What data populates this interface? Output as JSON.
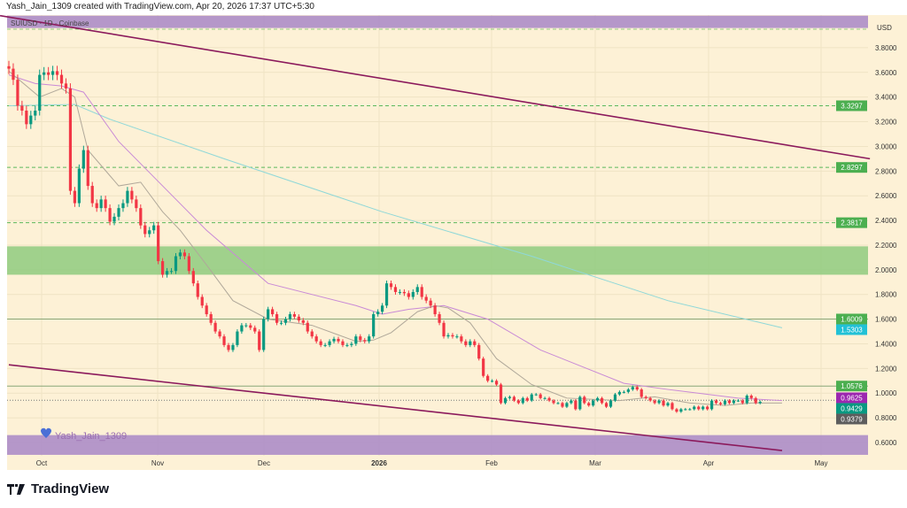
{
  "header": {
    "text": "Yash_Jain_1309 created with TradingView.com, Apr 20, 2026 17:37 UTC+5:30"
  },
  "chart": {
    "symbol_label": "SUIUSD · 1D · Coinbase",
    "currency": "USD",
    "watermark": "Yash_Jain_1309",
    "background": "#fdf1d6",
    "colors": {
      "up": "#089981",
      "down": "#f23645",
      "ma_gray": "#b0a89a",
      "ma_purple": "#c98ad6",
      "ma_cyan": "#8fd8d8",
      "trendline": "#8b1a5c",
      "zone_green": "#8fcb7f",
      "zone_purple": "#a887c7"
    }
  },
  "chart_data": {
    "type": "candlestick",
    "ylim": [
      0.5,
      4.0
    ],
    "y_ticks": [
      "3.8000",
      "3.6000",
      "3.4000",
      "3.2000",
      "3.0000",
      "2.8000",
      "2.6000",
      "2.4000",
      "2.2000",
      "2.0000",
      "1.8000",
      "1.6000",
      "1.4000",
      "1.2000",
      "1.0000",
      "0.8000",
      "0.6000"
    ],
    "x_ticks": [
      "Oct",
      "Nov",
      "Dec",
      "2026",
      "Feb",
      "Mar",
      "Apr",
      "May"
    ],
    "closes": [
      3.63,
      3.54,
      3.33,
      3.29,
      3.18,
      3.25,
      3.29,
      3.58,
      3.6,
      3.58,
      3.61,
      3.58,
      3.51,
      3.47,
      2.64,
      2.54,
      2.82,
      2.97,
      2.68,
      2.54,
      2.5,
      2.57,
      2.5,
      2.39,
      2.43,
      2.5,
      2.54,
      2.64,
      2.57,
      2.5,
      2.36,
      2.29,
      2.32,
      2.36,
      2.07,
      1.96,
      1.99,
      1.99,
      2.11,
      2.14,
      2.11,
      1.99,
      1.89,
      1.78,
      1.71,
      1.64,
      1.57,
      1.5,
      1.46,
      1.39,
      1.35,
      1.39,
      1.5,
      1.55,
      1.55,
      1.53,
      1.5,
      1.35,
      1.6,
      1.68,
      1.64,
      1.57,
      1.57,
      1.6,
      1.64,
      1.62,
      1.59,
      1.57,
      1.5,
      1.46,
      1.42,
      1.39,
      1.39,
      1.42,
      1.44,
      1.42,
      1.39,
      1.39,
      1.4,
      1.46,
      1.43,
      1.42,
      1.46,
      1.64,
      1.66,
      1.71,
      1.89,
      1.86,
      1.82,
      1.82,
      1.81,
      1.78,
      1.82,
      1.86,
      1.78,
      1.75,
      1.71,
      1.64,
      1.57,
      1.46,
      1.47,
      1.46,
      1.46,
      1.42,
      1.39,
      1.42,
      1.39,
      1.28,
      1.14,
      1.1,
      1.1,
      1.07,
      0.92,
      0.96,
      0.97,
      0.94,
      0.92,
      0.96,
      0.94,
      0.99,
      0.99,
      0.96,
      0.96,
      0.94,
      0.92,
      0.92,
      0.89,
      0.92,
      0.94,
      0.87,
      0.97,
      0.92,
      0.9,
      0.94,
      0.96,
      0.92,
      0.89,
      0.94,
      0.99,
      1.01,
      1.01,
      1.03,
      1.05,
      1.03,
      0.97,
      0.96,
      0.94,
      0.92,
      0.94,
      0.9,
      0.92,
      0.87,
      0.85,
      0.87,
      0.87,
      0.87,
      0.89,
      0.87,
      0.89,
      0.87,
      0.94,
      0.92,
      0.91,
      0.94,
      0.92,
      0.94,
      0.94,
      0.92,
      0.98,
      0.96,
      0.92,
      0.93
    ],
    "moving_averages": [
      {
        "color": "#8fd8d8",
        "points": [
          [
            0,
            3.33
          ],
          [
            15,
            3.34
          ],
          [
            23,
            3.22
          ],
          [
            49,
            2.9
          ],
          [
            85,
            2.47
          ],
          [
            119,
            2.11
          ],
          [
            150,
            1.75
          ],
          [
            176,
            1.53
          ]
        ]
      },
      {
        "color": "#c98ad6",
        "points": [
          [
            0,
            3.58
          ],
          [
            6,
            3.51
          ],
          [
            12,
            3.49
          ],
          [
            17,
            3.44
          ],
          [
            25,
            3.04
          ],
          [
            35,
            2.68
          ],
          [
            45,
            2.32
          ],
          [
            59,
            1.89
          ],
          [
            79,
            1.71
          ],
          [
            85,
            1.64
          ],
          [
            91,
            1.68
          ],
          [
            99,
            1.71
          ],
          [
            109,
            1.6
          ],
          [
            121,
            1.35
          ],
          [
            140,
            1.08
          ],
          [
            150,
            1.03
          ],
          [
            166,
            0.96
          ],
          [
            176,
            0.94
          ]
        ]
      },
      {
        "color": "#b0a89a",
        "points": [
          [
            0,
            3.61
          ],
          [
            7,
            3.4
          ],
          [
            12,
            3.47
          ],
          [
            15,
            3.4
          ],
          [
            18,
            2.97
          ],
          [
            25,
            2.68
          ],
          [
            30,
            2.71
          ],
          [
            35,
            2.47
          ],
          [
            39,
            2.32
          ],
          [
            45,
            2.04
          ],
          [
            51,
            1.75
          ],
          [
            59,
            1.6
          ],
          [
            69,
            1.55
          ],
          [
            79,
            1.42
          ],
          [
            83,
            1.43
          ],
          [
            87,
            1.49
          ],
          [
            93,
            1.66
          ],
          [
            97,
            1.71
          ],
          [
            100,
            1.69
          ],
          [
            105,
            1.57
          ],
          [
            111,
            1.28
          ],
          [
            119,
            1.07
          ],
          [
            127,
            0.96
          ],
          [
            139,
            0.94
          ],
          [
            147,
            0.97
          ],
          [
            155,
            0.92
          ],
          [
            163,
            0.9
          ],
          [
            169,
            0.92
          ],
          [
            176,
            0.92
          ]
        ]
      }
    ],
    "trendlines": [
      {
        "from": [
          -2,
          4.06
        ],
        "to": [
          196,
          2.9
        ]
      },
      {
        "from": [
          0,
          1.23
        ],
        "to": [
          176,
          0.535
        ]
      }
    ],
    "zones": [
      {
        "color": "#a887c7",
        "low": 3.96,
        "high": 4.06
      },
      {
        "color": "#8fcb7f",
        "low": 1.96,
        "high": 2.19
      },
      {
        "color": "#a887c7",
        "low": 0.5,
        "high": 0.66
      }
    ],
    "levels": [
      {
        "value": 3.95,
        "style": "dashed",
        "color": "#8fcb7f"
      },
      {
        "value": 3.3297,
        "style": "dashed",
        "color": "#5cb85c"
      },
      {
        "value": 2.8297,
        "style": "dashed",
        "color": "#5cb85c"
      },
      {
        "value": 2.3817,
        "style": "dashed",
        "color": "#5cb85c"
      },
      {
        "value": 1.6009,
        "style": "solid",
        "color": "#8aa878"
      },
      {
        "value": 1.0576,
        "style": "solid",
        "color": "#8aa878"
      },
      {
        "value": 0.9429,
        "style": "dotted",
        "color": "#777777"
      }
    ],
    "badges": [
      {
        "label": "3.3297",
        "value": 3.3297,
        "color": "#4caf50"
      },
      {
        "label": "2.8297",
        "value": 2.8297,
        "color": "#4caf50"
      },
      {
        "label": "2.3817",
        "value": 2.3817,
        "color": "#4caf50"
      },
      {
        "label": "1.6009",
        "value": 1.6009,
        "color": "#4caf50"
      },
      {
        "label": "1.5303",
        "value": 1.5303,
        "color": "#22c1d6"
      },
      {
        "label": "1.0576",
        "value": 1.0576,
        "color": "#4caf50"
      },
      {
        "label": "0.9625",
        "value": 0.9625,
        "color": "#9c27b0"
      },
      {
        "label": "0.9429",
        "value": 0.9429,
        "color": "#089981"
      },
      {
        "label": "0.9379",
        "value": 0.9379,
        "color": "#5d5d5d"
      }
    ]
  },
  "footer": {
    "brand": "TradingView"
  }
}
